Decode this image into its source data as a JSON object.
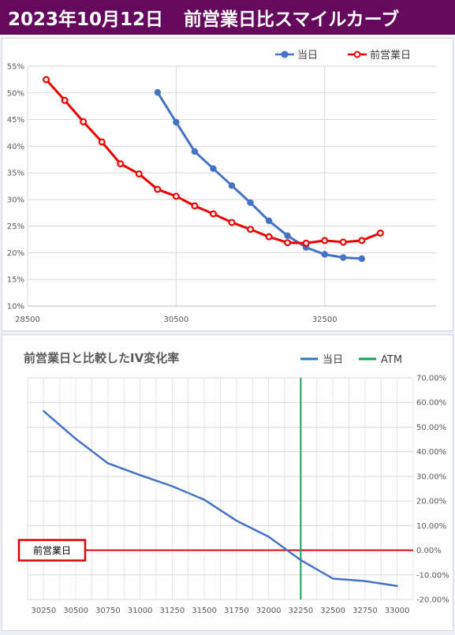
{
  "banner": {
    "date": "2023年10月12日",
    "title": "前営業日比スマイルカーブ"
  },
  "colors": {
    "banner_bg": "#64095e",
    "today": "#4472c4",
    "prev": "#ee0000",
    "today_line": "#2e75b6",
    "atm": "#12a05a",
    "ref": "#dd0000"
  },
  "chart_data": [
    {
      "type": "line",
      "title": "",
      "legend_position": "top-right",
      "grid": true,
      "xlim": [
        28500,
        34000
      ],
      "ylim": [
        0.1,
        0.55
      ],
      "x_ticks": [
        28500,
        30500,
        32500
      ],
      "x_tick_labels": [
        "28500",
        "30500",
        "32500"
      ],
      "y_ticks": [
        0.1,
        0.15,
        0.2,
        0.25,
        0.3,
        0.35,
        0.4,
        0.45,
        0.5,
        0.55
      ],
      "y_tick_labels": [
        "10%",
        "15%",
        "20%",
        "25%",
        "30%",
        "35%",
        "40%",
        "45%",
        "50%",
        "55%"
      ],
      "series": [
        {
          "name": "当日",
          "color": "#4472c4",
          "x": [
            30250,
            30500,
            30750,
            31000,
            31250,
            31500,
            31750,
            32000,
            32250,
            32500,
            32750,
            33000
          ],
          "y": [
            0.501,
            0.445,
            0.39,
            0.358,
            0.326,
            0.294,
            0.26,
            0.232,
            0.21,
            0.197,
            0.191,
            0.189
          ]
        },
        {
          "name": "前営業日",
          "color": "#ee0000",
          "x": [
            28750,
            29000,
            29250,
            29500,
            29750,
            30000,
            30250,
            30500,
            30750,
            31000,
            31250,
            31500,
            31750,
            32000,
            32250,
            32500,
            32750,
            33000,
            33250
          ],
          "y": [
            0.525,
            0.486,
            0.446,
            0.408,
            0.367,
            0.348,
            0.319,
            0.306,
            0.288,
            0.273,
            0.257,
            0.244,
            0.23,
            0.219,
            0.218,
            0.223,
            0.22,
            0.223,
            0.237
          ]
        }
      ]
    },
    {
      "type": "line",
      "title": "前営業日と比較したIV変化率",
      "legend_position": "top-right",
      "grid": true,
      "categories": [
        "30250",
        "30500",
        "30750",
        "31000",
        "31250",
        "31500",
        "31750",
        "32000",
        "32250",
        "32500",
        "32750",
        "33000"
      ],
      "ylim": [
        -0.2,
        0.7
      ],
      "y_ticks": [
        -0.2,
        -0.1,
        0.0,
        0.1,
        0.2,
        0.3,
        0.4,
        0.5,
        0.6,
        0.7
      ],
      "y_tick_labels": [
        "-20.00%",
        "-10.00%",
        "0.00%",
        "10.00%",
        "20.00%",
        "30.00%",
        "40.00%",
        "50.00%",
        "60.00%",
        "70.00%"
      ],
      "series": [
        {
          "name": "当日",
          "color": "#4472c4",
          "values": [
            0.565,
            0.452,
            0.353,
            0.305,
            0.26,
            0.205,
            0.12,
            0.055,
            -0.04,
            -0.115,
            -0.125,
            -0.145
          ]
        },
        {
          "name": "ATM",
          "color": "#12a05a",
          "x_category_position": 8.5
        }
      ],
      "reference_line": {
        "label": "前営業日",
        "value": 0.0,
        "color": "#dd0000"
      }
    }
  ]
}
